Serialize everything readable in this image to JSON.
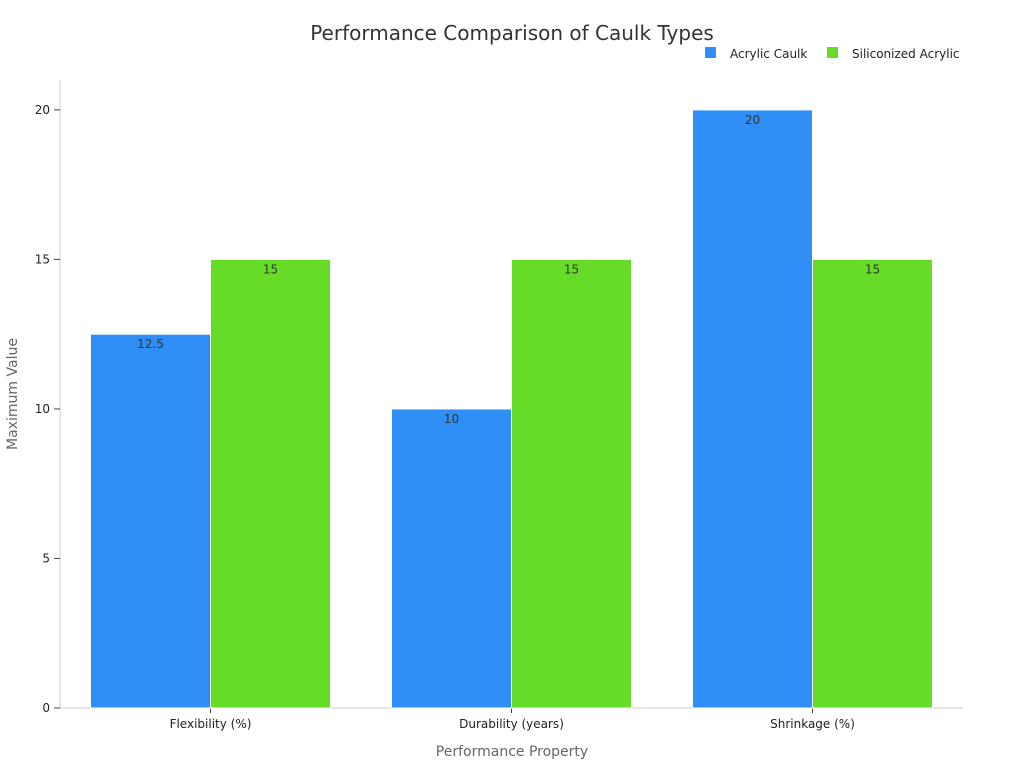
{
  "chart_data": {
    "type": "bar",
    "title": "Performance Comparison of Caulk Types",
    "xlabel": "Performance Property",
    "ylabel": "Maximum Value",
    "categories": [
      "Flexibility (%)",
      "Durability (years)",
      "Shrinkage (%)"
    ],
    "series": [
      {
        "name": "Acrylic Caulk",
        "values": [
          12.5,
          10,
          20
        ],
        "color": "#2f8ff7",
        "labels": [
          "12.5",
          "10",
          "20"
        ]
      },
      {
        "name": "Siliconized Acrylic",
        "values": [
          15,
          15,
          15
        ],
        "color": "#66db28",
        "labels": [
          "15",
          "15",
          "15"
        ]
      }
    ],
    "ylim": [
      0,
      21
    ],
    "yticks": [
      0,
      5,
      10,
      15,
      20
    ],
    "grid": false,
    "legend_position": "top-right"
  }
}
